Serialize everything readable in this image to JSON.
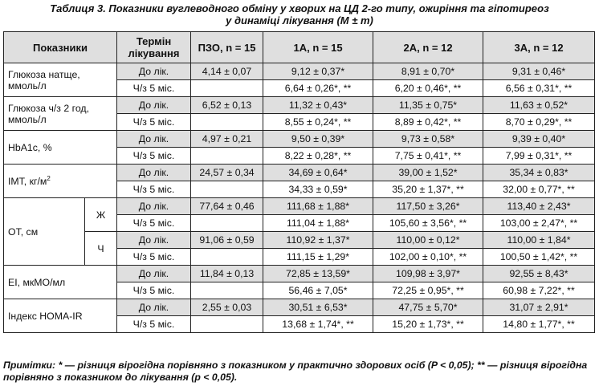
{
  "title": {
    "line1": "Таблиця 3. Показники вуглеводного обміну у хворих на ЦД 2-го типу, ожиріння та гіпотиреоз",
    "line2": "у динаміці лікування (M ± m)"
  },
  "headers": {
    "indicator": "Показники",
    "term": "Термін лікування",
    "pzo": "ПЗО, n = 15",
    "g1": "1А, n = 15",
    "g2": "2А, n = 12",
    "g3": "3А, n = 12"
  },
  "rows": {
    "glucose_fasting": {
      "label": "Глюкоза натще, ммоль/л",
      "before": {
        "term": "До лік.",
        "pzo": "4,14 ± 0,07",
        "g1": "9,12 ± 0,37*",
        "g2": "8,91 ± 0,70*",
        "g3": "9,31 ± 0,46*"
      },
      "after": {
        "term": "Ч/з 5 міс.",
        "g1": "6,64 ± 0,26*, **",
        "g2": "6,20 ± 0,46*, **",
        "g3": "6,56 ± 0,31*, **"
      }
    },
    "glucose_2h": {
      "label": "Глюкоза ч/з 2 год, ммоль/л",
      "before": {
        "term": "До лік.",
        "pzo": "6,52 ± 0,13",
        "g1": "11,32 ± 0,43*",
        "g2": "11,35 ± 0,75*",
        "g3": "11,63 ± 0,52*"
      },
      "after": {
        "term": "Ч/з 5 міс.",
        "g1": "8,55 ± 0,24*, **",
        "g2": "8,89 ± 0,42*, **",
        "g3": "8,70 ± 0,29*, **"
      }
    },
    "hba1c": {
      "label": "HbA1c, %",
      "before": {
        "term": "До лік.",
        "pzo": "4,97 ± 0,21",
        "g1": "9,50 ± 0,39*",
        "g2": "9,73 ± 0,58*",
        "g3": "9,39 ± 0,40*"
      },
      "after": {
        "term": "Ч/з 5 міс.",
        "g1": "8,22 ± 0,28*, **",
        "g2": "7,75 ± 0,41*, **",
        "g3": "7,99 ± 0,31*, **"
      }
    },
    "bmi": {
      "label": "ІМТ, кг/м",
      "label_sup": "2",
      "before": {
        "term": "До лік.",
        "pzo": "24,57 ± 0,34",
        "g1": "34,69 ± 0,64*",
        "g2": "39,00 ± 1,52*",
        "g3": "35,34 ± 0,83*"
      },
      "after": {
        "term": "Ч/з 5 міс.",
        "g1": "34,33 ± 0,59*",
        "g2": "35,20 ± 1,37*, **",
        "g3": "32,00 ± 0,77*, **"
      }
    },
    "waist": {
      "label": "ОТ, см",
      "female": {
        "sex": "Ж",
        "before": {
          "term": "До лік.",
          "pzo": "77,64 ± 0,46",
          "g1": "111,68 ± 1,88*",
          "g2": "117,50 ± 3,26*",
          "g3": "113,40 ± 2,43*"
        },
        "after": {
          "term": "Ч/з 5 міс.",
          "g1": "111,04 ± 1,88*",
          "g2": "105,60 ± 3,56*, **",
          "g3": "103,00 ± 2,47*, **"
        }
      },
      "male": {
        "sex": "Ч",
        "before": {
          "term": "До лік.",
          "pzo": "91,06 ± 0,59",
          "g1": "110,92 ± 1,37*",
          "g2": "110,00 ± 0,12*",
          "g3": "110,00 ± 1,84*"
        },
        "after": {
          "term": "Ч/з 5 міс.",
          "g1": "111,15 ± 1,29*",
          "g2": "102,00 ± 0,10*, **",
          "g3": "100,50 ± 1,42*, **"
        }
      }
    },
    "ei": {
      "label": "ЕІ, мкМО/мл",
      "before": {
        "term": "До лік.",
        "pzo": "11,84 ± 0,13",
        "g1": "72,85 ± 13,59*",
        "g2": "109,98 ± 3,97*",
        "g3": "92,55 ± 8,43*"
      },
      "after": {
        "term": "Ч/з 5 міс.",
        "g1": "56,46 ± 7,05*",
        "g2": "72,25 ± 0,95*, **",
        "g3": "60,98 ± 7,22*, **"
      }
    },
    "homa": {
      "label": "Індекс HOMA-IR",
      "before": {
        "term": "До лік.",
        "pzo": "2,55 ± 0,03",
        "g1": "30,51 ± 6,53*",
        "g2": "47,75 ± 5,70*",
        "g3": "31,07 ± 2,91*"
      },
      "after": {
        "term": "Ч/з 5 міс.",
        "g1": "13,68 ± 1,74*, **",
        "g2": "15,20 ± 1,73*, **",
        "g3": "14,80 ± 1,77*, **"
      }
    }
  },
  "note": "Примітки: * — різниця вірогідна порівняно з показником у практично здорових осіб (P < 0,05); ** — різниця вірогідна порівняно з показником до лікування (p < 0,05)."
}
